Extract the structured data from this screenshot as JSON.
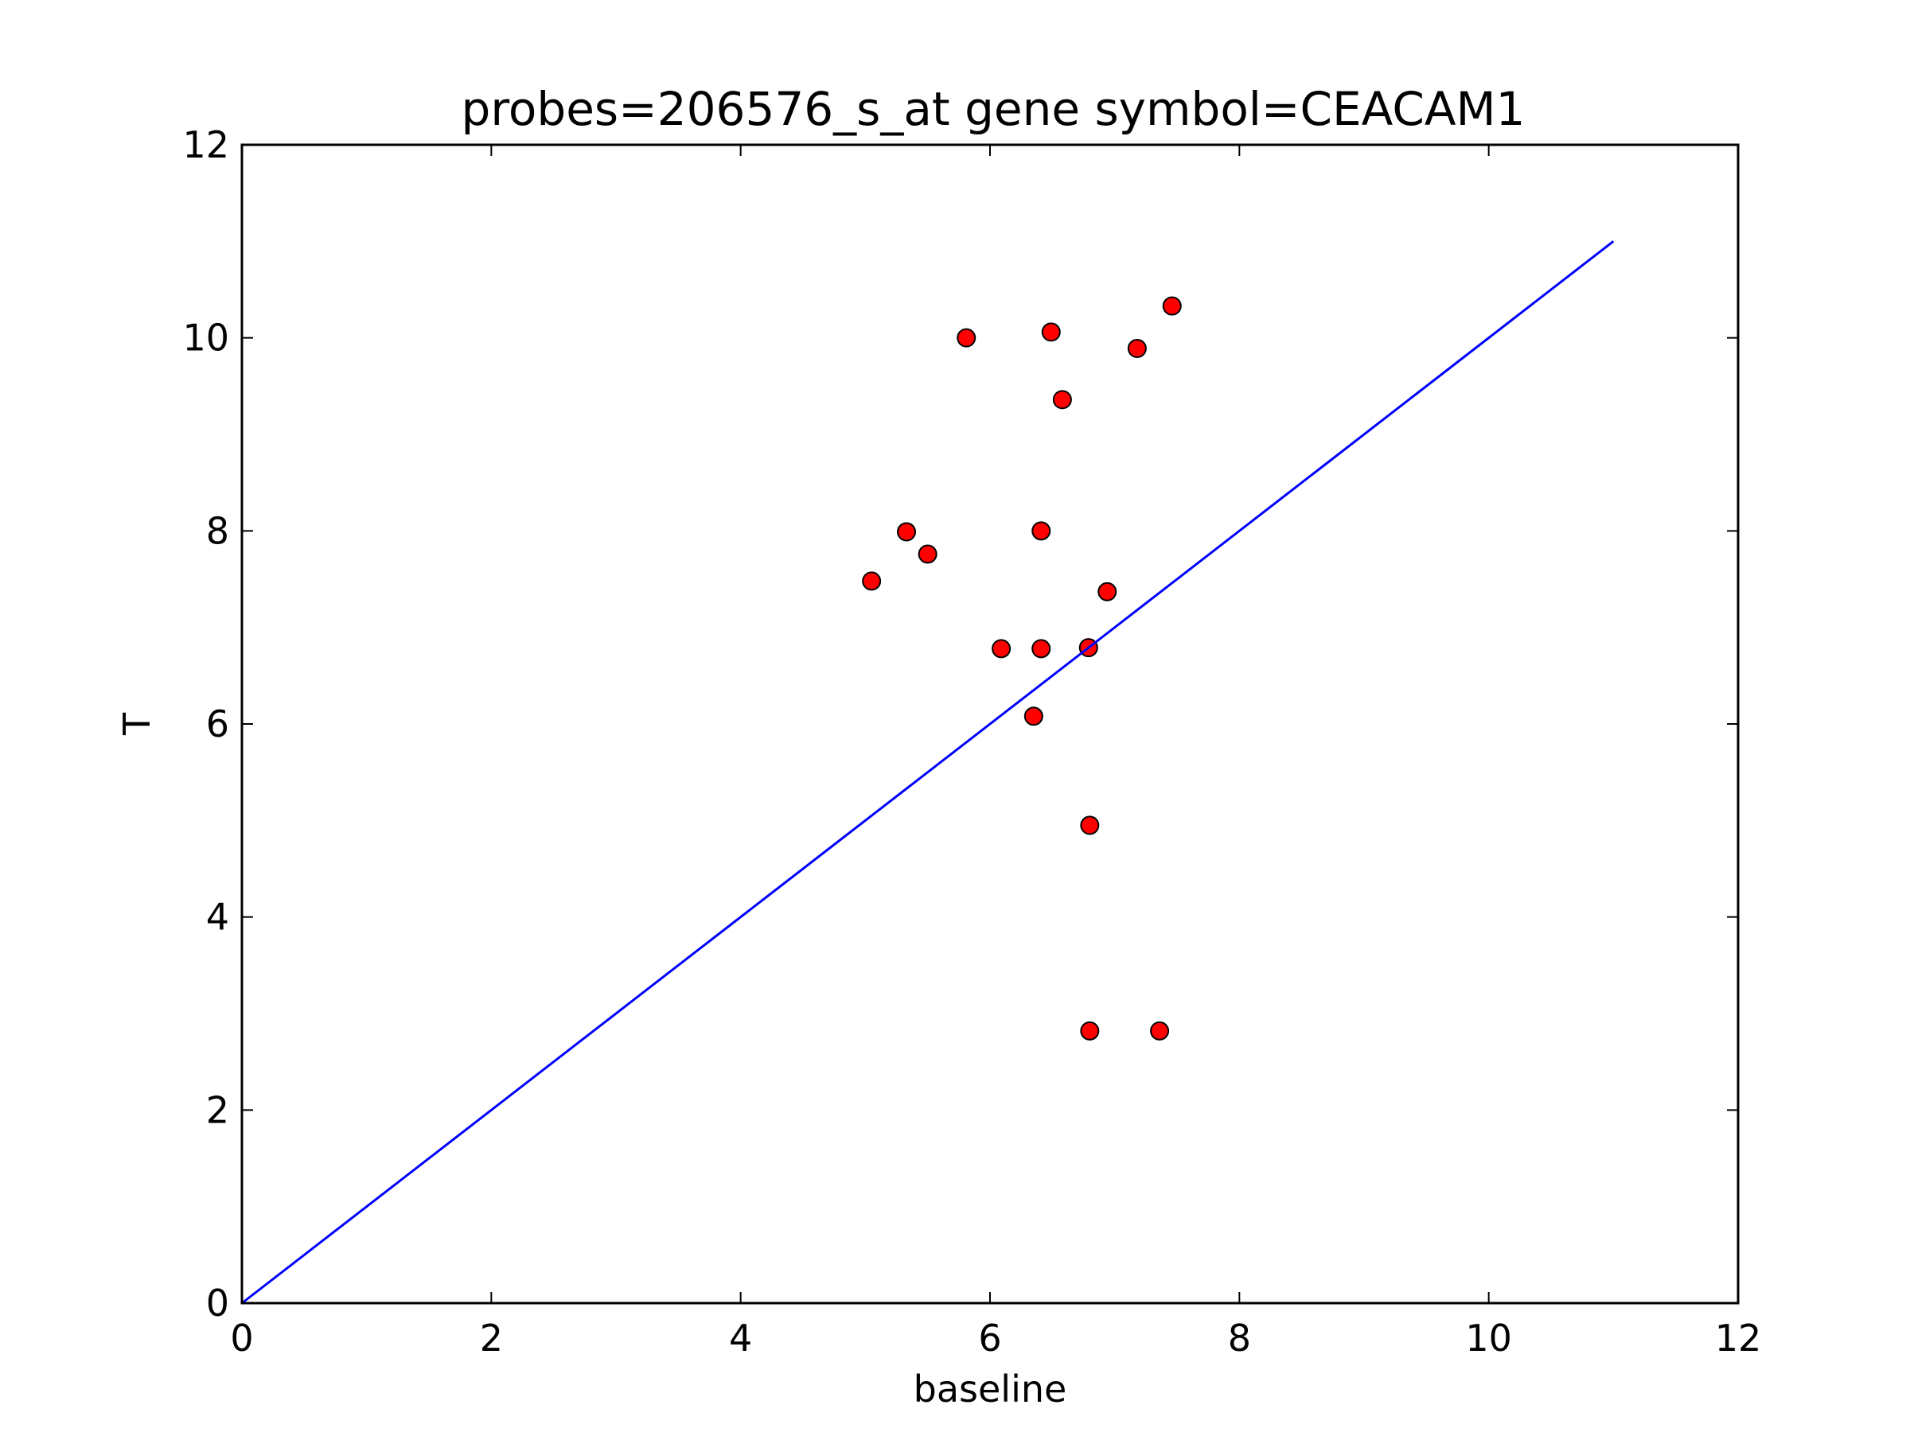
{
  "chart_data": {
    "type": "scatter",
    "title": "probes=206576_s_at gene symbol=CEACAM1",
    "xlabel": "baseline",
    "ylabel": "T",
    "xlim": [
      0,
      12
    ],
    "ylim": [
      0,
      12
    ],
    "xticks": [
      "0",
      "2",
      "4",
      "6",
      "8",
      "10",
      "12"
    ],
    "yticks": [
      "0",
      "2",
      "4",
      "6",
      "8",
      "10",
      "12"
    ],
    "grid": false,
    "legend": "none",
    "series": [
      {
        "kind": "points",
        "color": "#ff0000",
        "edge_color": "#000000",
        "points": [
          [
            5.05,
            7.48
          ],
          [
            5.33,
            7.99
          ],
          [
            5.5,
            7.76
          ],
          [
            5.81,
            10.0
          ],
          [
            6.09,
            6.78
          ],
          [
            6.35,
            6.08
          ],
          [
            6.41,
            8.0
          ],
          [
            6.41,
            6.78
          ],
          [
            6.49,
            10.06
          ],
          [
            6.58,
            9.36
          ],
          [
            6.79,
            6.79
          ],
          [
            6.8,
            4.95
          ],
          [
            6.8,
            2.82
          ],
          [
            6.94,
            7.37
          ],
          [
            7.18,
            9.89
          ],
          [
            7.36,
            2.82
          ],
          [
            7.46,
            10.33
          ]
        ]
      },
      {
        "kind": "line",
        "color": "#0000ff",
        "x": [
          0,
          11
        ],
        "y": [
          0,
          11
        ]
      }
    ]
  }
}
